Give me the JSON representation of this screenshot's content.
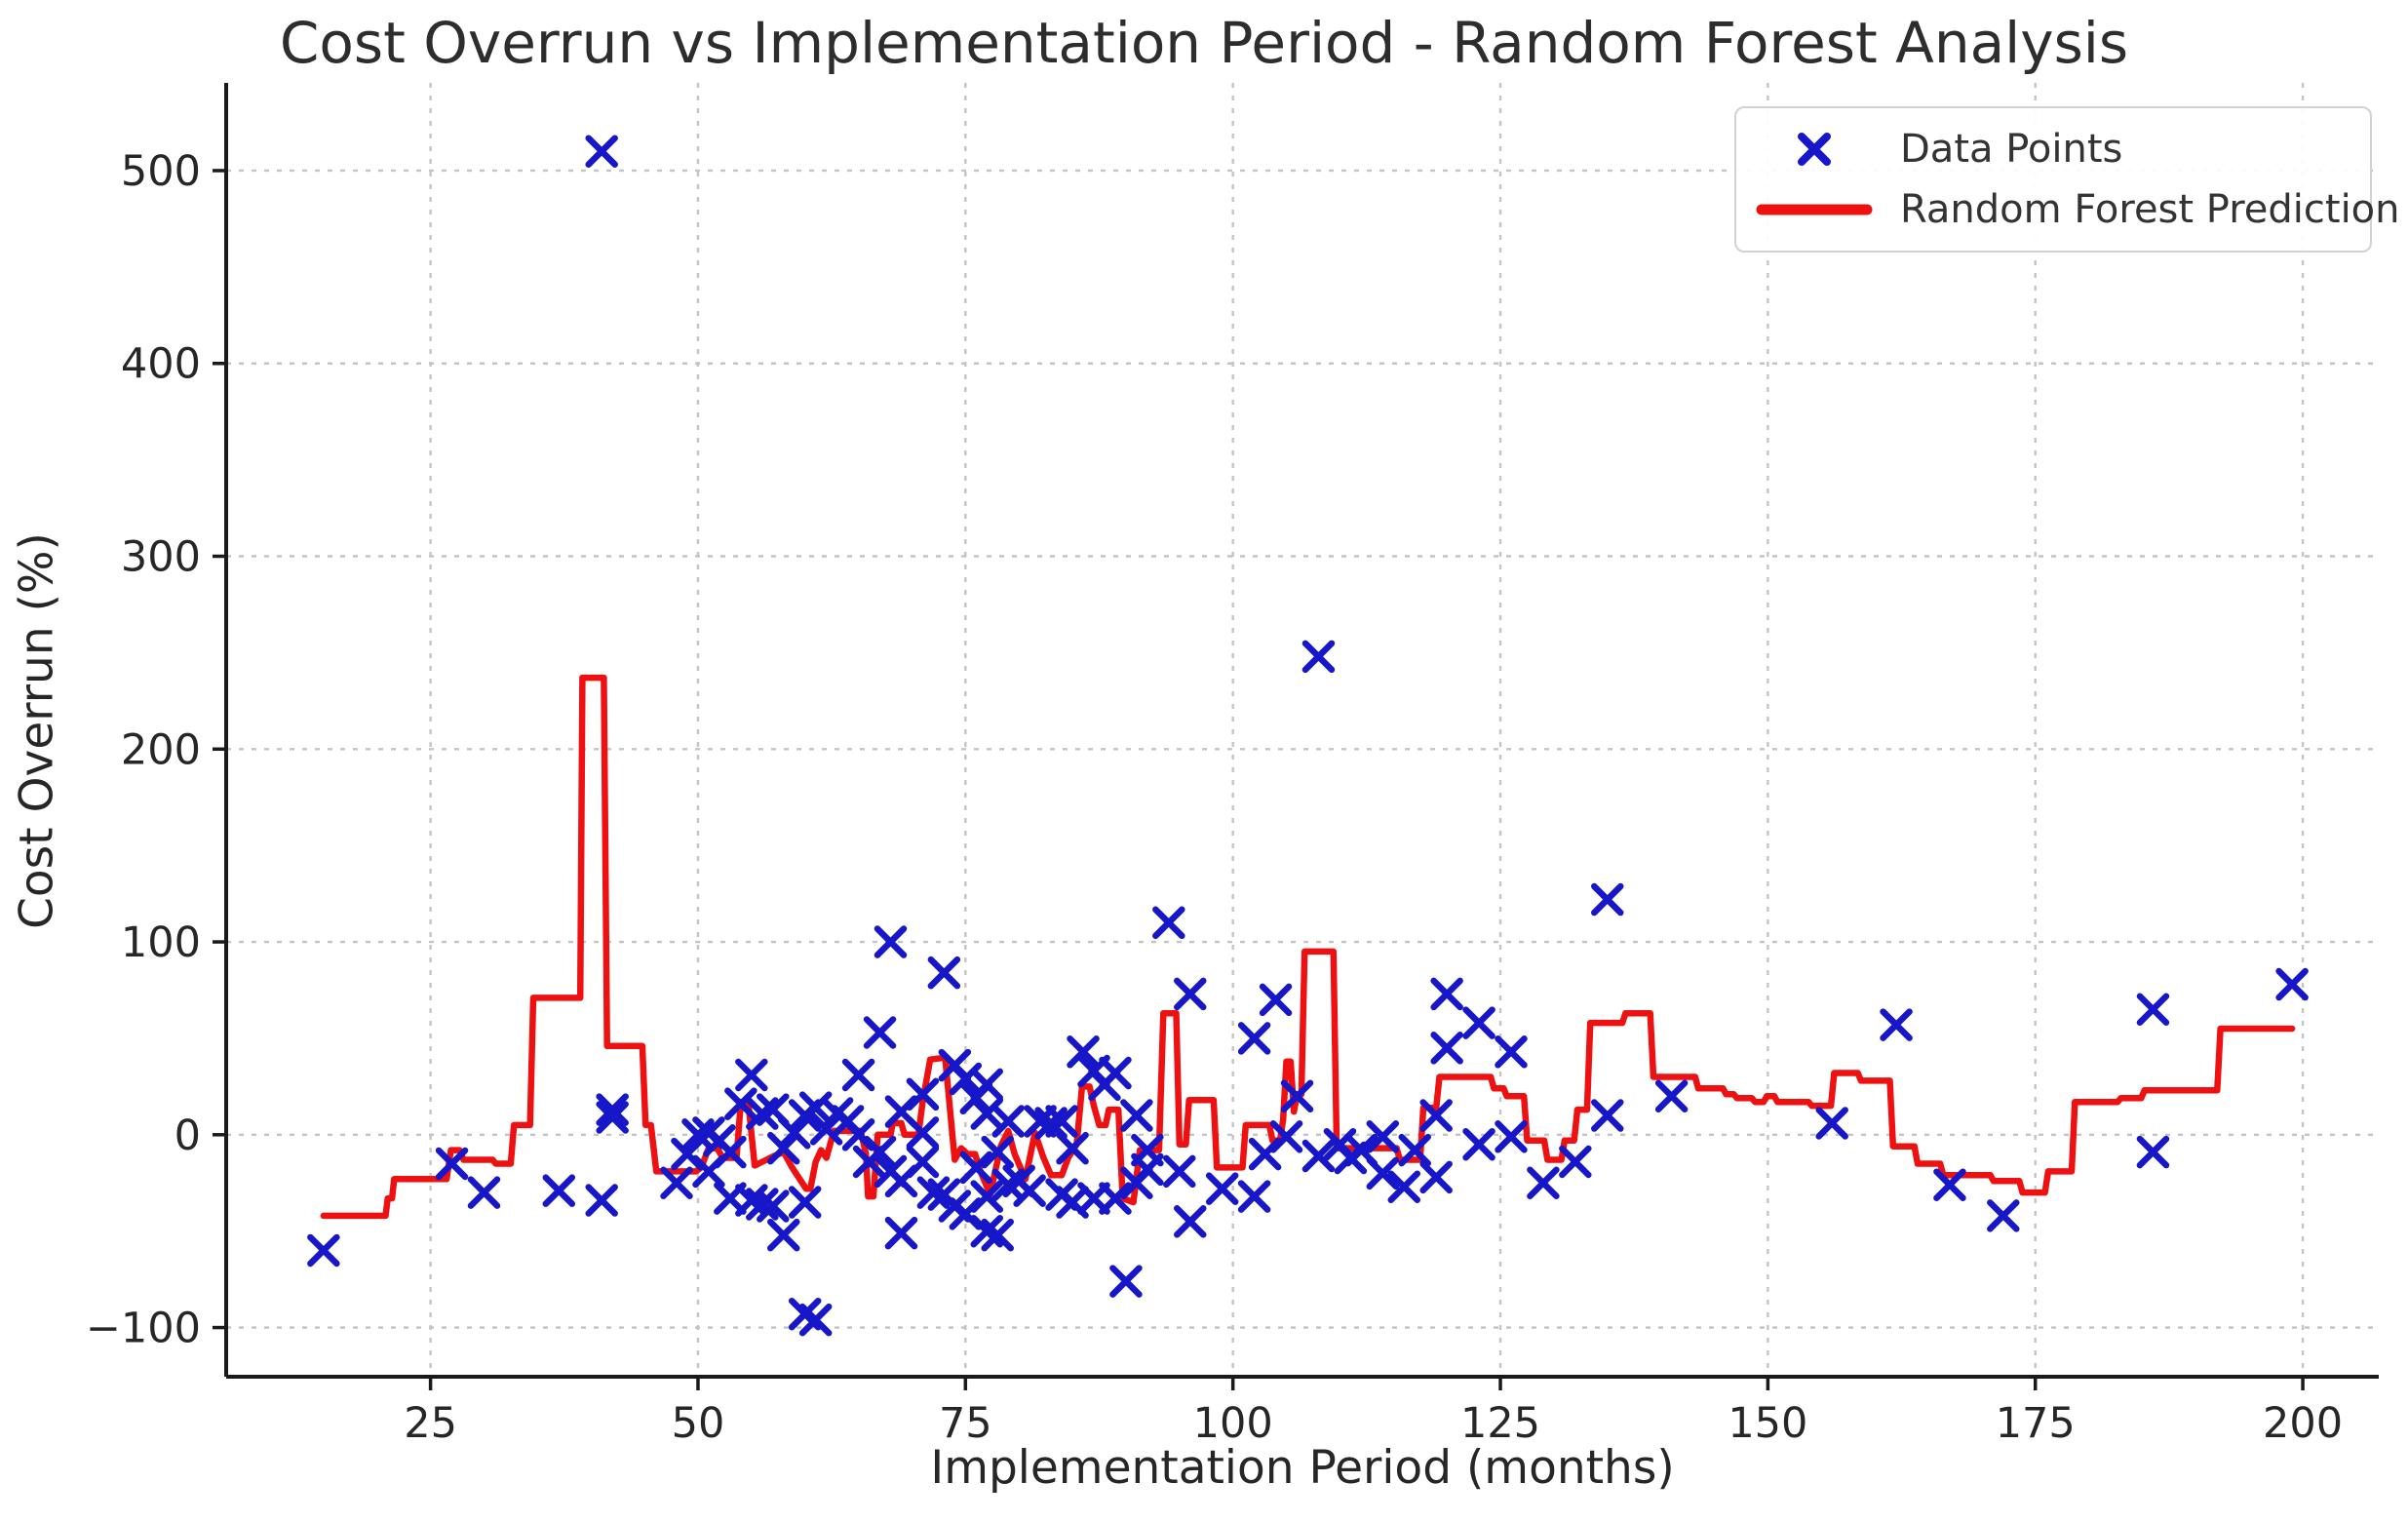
{
  "chart_data": {
    "type": "scatter",
    "title": "Cost Overrun vs Implementation Period - Random Forest Analysis",
    "xlabel": "Implementation Period (months)",
    "ylabel": "Cost Overrun (%)",
    "x_ticks": [
      25,
      50,
      75,
      100,
      125,
      150,
      175,
      200
    ],
    "y_ticks": [
      -100,
      0,
      100,
      200,
      300,
      400,
      500
    ],
    "xlim": [
      5.9,
      207.1
    ],
    "ylim": [
      -125.5,
      545.5
    ],
    "grid": true,
    "legend_position": "upper right",
    "legend": [
      {
        "label": "Data Points",
        "type": "marker"
      },
      {
        "label": "Random Forest Prediction",
        "type": "line"
      }
    ],
    "colors": {
      "marker": "#1717c9",
      "line": "#ee1111",
      "grid": "#c4c4c4",
      "axis": "#1a1a1a",
      "text": "#262626"
    },
    "series": [
      {
        "name": "Data Points",
        "points": [
          [
            15,
            -60
          ],
          [
            27,
            -15
          ],
          [
            30,
            -30
          ],
          [
            37,
            -29
          ],
          [
            41,
            -34
          ],
          [
            41,
            510
          ],
          [
            42,
            9
          ],
          [
            42,
            13
          ],
          [
            48,
            -25
          ],
          [
            49,
            -10
          ],
          [
            50,
            0
          ],
          [
            51,
            1
          ],
          [
            51,
            -19
          ],
          [
            52,
            -3
          ],
          [
            53,
            -9
          ],
          [
            53,
            -33
          ],
          [
            54,
            16
          ],
          [
            55,
            31
          ],
          [
            55,
            -34
          ],
          [
            56,
            11
          ],
          [
            56,
            -36
          ],
          [
            57,
            13
          ],
          [
            57,
            -37
          ],
          [
            58,
            -7
          ],
          [
            58,
            -52
          ],
          [
            59,
            1
          ],
          [
            60,
            10
          ],
          [
            60,
            -35
          ],
          [
            60,
            -93
          ],
          [
            61,
            14
          ],
          [
            61,
            -96
          ],
          [
            62,
            3
          ],
          [
            63,
            11
          ],
          [
            64,
            7
          ],
          [
            65,
            0
          ],
          [
            65,
            31
          ],
          [
            66,
            -14
          ],
          [
            67,
            53
          ],
          [
            67,
            -9
          ],
          [
            68,
            100
          ],
          [
            68,
            -19
          ],
          [
            69,
            12
          ],
          [
            69,
            -24
          ],
          [
            69,
            -51
          ],
          [
            71,
            21
          ],
          [
            71,
            1
          ],
          [
            71,
            -14
          ],
          [
            72,
            -30
          ],
          [
            73,
            84
          ],
          [
            73,
            -31
          ],
          [
            74,
            36
          ],
          [
            74,
            -37
          ],
          [
            75,
            29
          ],
          [
            75,
            -41
          ],
          [
            76,
            19
          ],
          [
            76,
            -17
          ],
          [
            77,
            26
          ],
          [
            77,
            11
          ],
          [
            77,
            -32
          ],
          [
            77,
            -50
          ],
          [
            78,
            -52
          ],
          [
            78,
            -9
          ],
          [
            79,
            7
          ],
          [
            79,
            -26
          ],
          [
            80,
            -24
          ],
          [
            81,
            -29
          ],
          [
            82,
            7
          ],
          [
            83,
            6
          ],
          [
            84,
            7
          ],
          [
            84,
            -31
          ],
          [
            85,
            -7
          ],
          [
            85,
            -35
          ],
          [
            86,
            43
          ],
          [
            87,
            33
          ],
          [
            87,
            -33
          ],
          [
            88,
            26
          ],
          [
            89,
            32
          ],
          [
            89,
            -33
          ],
          [
            90,
            -76
          ],
          [
            91,
            10
          ],
          [
            91,
            -25
          ],
          [
            92,
            -8
          ],
          [
            92,
            -18
          ],
          [
            94,
            110
          ],
          [
            95,
            -19
          ],
          [
            96,
            73
          ],
          [
            96,
            -45
          ],
          [
            99,
            -28
          ],
          [
            102,
            50
          ],
          [
            102,
            -32
          ],
          [
            103,
            -10
          ],
          [
            104,
            70
          ],
          [
            105,
            -1
          ],
          [
            106,
            20
          ],
          [
            108,
            248
          ],
          [
            108,
            -11
          ],
          [
            110,
            -5
          ],
          [
            111,
            -12
          ],
          [
            112,
            -8
          ],
          [
            114,
            -1
          ],
          [
            114,
            -20
          ],
          [
            116,
            -27
          ],
          [
            117,
            -8
          ],
          [
            119,
            10
          ],
          [
            119,
            -22
          ],
          [
            120,
            73
          ],
          [
            120,
            45
          ],
          [
            123,
            58
          ],
          [
            123,
            -5
          ],
          [
            126,
            43
          ],
          [
            126,
            -1
          ],
          [
            129,
            -25
          ],
          [
            132,
            -14
          ],
          [
            135,
            122
          ],
          [
            135,
            10
          ],
          [
            141,
            20
          ],
          [
            156,
            6
          ],
          [
            162,
            57
          ],
          [
            167,
            -26
          ],
          [
            172,
            -42
          ],
          [
            186,
            65
          ],
          [
            186,
            -9
          ],
          [
            199,
            78
          ]
        ]
      },
      {
        "name": "Random Forest Prediction",
        "points": [
          [
            15,
            -42
          ],
          [
            20.8,
            -42
          ],
          [
            21.0,
            -33
          ],
          [
            21.4,
            -33
          ],
          [
            21.6,
            -23
          ],
          [
            26.5,
            -23
          ],
          [
            26.9,
            -8
          ],
          [
            27.7,
            -8
          ],
          [
            28.1,
            -13
          ],
          [
            30.8,
            -13
          ],
          [
            31.1,
            -15
          ],
          [
            32.5,
            -15
          ],
          [
            32.8,
            5
          ],
          [
            34.3,
            5
          ],
          [
            34.6,
            71
          ],
          [
            39.0,
            71
          ],
          [
            39.2,
            237
          ],
          [
            41.2,
            237
          ],
          [
            41.5,
            46
          ],
          [
            44.8,
            46
          ],
          [
            45.1,
            5
          ],
          [
            45.6,
            5
          ],
          [
            46.1,
            -19
          ],
          [
            49.8,
            -19
          ],
          [
            50.3,
            -17
          ],
          [
            51.0,
            -7
          ],
          [
            51.8,
            -7
          ],
          [
            52.3,
            -12
          ],
          [
            53.6,
            -12
          ],
          [
            54.0,
            17
          ],
          [
            54.7,
            17
          ],
          [
            55.3,
            -16
          ],
          [
            56.4,
            -13
          ],
          [
            57.1,
            -11
          ],
          [
            58.0,
            -9
          ],
          [
            58.8,
            -17
          ],
          [
            60.1,
            -28
          ],
          [
            60.5,
            -28
          ],
          [
            61.0,
            -14
          ],
          [
            61.5,
            -8
          ],
          [
            62.0,
            -12
          ],
          [
            62.7,
            2
          ],
          [
            65.2,
            2
          ],
          [
            65.7,
            -10
          ],
          [
            65.9,
            -32
          ],
          [
            66.4,
            -32
          ],
          [
            66.8,
            0
          ],
          [
            68.0,
            0
          ],
          [
            68.2,
            6
          ],
          [
            69.0,
            6
          ],
          [
            69.3,
            0
          ],
          [
            70.6,
            0
          ],
          [
            71.0,
            17
          ],
          [
            71.7,
            39
          ],
          [
            73.1,
            40
          ],
          [
            74.0,
            -13
          ],
          [
            74.6,
            -7
          ],
          [
            75.2,
            -10
          ],
          [
            75.9,
            -10
          ],
          [
            76.4,
            -19
          ],
          [
            77.3,
            -31
          ],
          [
            78.3,
            -6
          ],
          [
            79.0,
            2
          ],
          [
            79.6,
            -10
          ],
          [
            80.6,
            -23
          ],
          [
            81.5,
            1
          ],
          [
            82.3,
            -12
          ],
          [
            83.0,
            -21
          ],
          [
            84.0,
            -21
          ],
          [
            84.6,
            -12
          ],
          [
            85.4,
            -5
          ],
          [
            85.9,
            25
          ],
          [
            86.6,
            25
          ],
          [
            87.0,
            15
          ],
          [
            87.5,
            5
          ],
          [
            88.1,
            5
          ],
          [
            88.4,
            13
          ],
          [
            89.3,
            13
          ],
          [
            89.7,
            -33
          ],
          [
            90.7,
            -35
          ],
          [
            91.3,
            -8
          ],
          [
            93.1,
            -8
          ],
          [
            93.5,
            63
          ],
          [
            94.7,
            63
          ],
          [
            95.0,
            -5
          ],
          [
            95.6,
            -5
          ],
          [
            95.9,
            18
          ],
          [
            98.2,
            18
          ],
          [
            98.5,
            -17
          ],
          [
            100.9,
            -17
          ],
          [
            101.2,
            5
          ],
          [
            103.4,
            5
          ],
          [
            103.7,
            -3
          ],
          [
            104.4,
            -3
          ],
          [
            104.7,
            8
          ],
          [
            105.0,
            38
          ],
          [
            105.4,
            38
          ],
          [
            105.7,
            12
          ],
          [
            106.0,
            21
          ],
          [
            106.4,
            21
          ],
          [
            106.7,
            95
          ],
          [
            109.4,
            95
          ],
          [
            109.7,
            -7
          ],
          [
            115.3,
            -7
          ],
          [
            115.6,
            -13
          ],
          [
            117.5,
            -13
          ],
          [
            117.8,
            14
          ],
          [
            119.0,
            14
          ],
          [
            119.3,
            30
          ],
          [
            124.1,
            30
          ],
          [
            124.4,
            24
          ],
          [
            125.3,
            24
          ],
          [
            125.6,
            20
          ],
          [
            127.2,
            20
          ],
          [
            127.5,
            -3
          ],
          [
            129.1,
            -3
          ],
          [
            129.4,
            -13
          ],
          [
            130.7,
            -13
          ],
          [
            131.0,
            -3
          ],
          [
            131.9,
            -3
          ],
          [
            132.2,
            13
          ],
          [
            133.1,
            13
          ],
          [
            133.4,
            58
          ],
          [
            136.4,
            58
          ],
          [
            136.7,
            63
          ],
          [
            139.0,
            63
          ],
          [
            139.3,
            30
          ],
          [
            143.2,
            30
          ],
          [
            143.5,
            24
          ],
          [
            145.8,
            24
          ],
          [
            146.1,
            21
          ],
          [
            146.8,
            21
          ],
          [
            147.1,
            19
          ],
          [
            148.5,
            19
          ],
          [
            148.8,
            17
          ],
          [
            149.6,
            17
          ],
          [
            149.9,
            20
          ],
          [
            150.6,
            20
          ],
          [
            150.9,
            17
          ],
          [
            153.8,
            17
          ],
          [
            154.1,
            15
          ],
          [
            155.9,
            15
          ],
          [
            156.2,
            32
          ],
          [
            158.4,
            32
          ],
          [
            158.7,
            28
          ],
          [
            161.4,
            28
          ],
          [
            161.7,
            -6
          ],
          [
            163.7,
            -6
          ],
          [
            164.0,
            -15
          ],
          [
            166.1,
            -15
          ],
          [
            166.4,
            -21
          ],
          [
            170.8,
            -21
          ],
          [
            171.1,
            -24
          ],
          [
            173.5,
            -24
          ],
          [
            173.8,
            -30
          ],
          [
            175.9,
            -30
          ],
          [
            176.2,
            -19
          ],
          [
            178.4,
            -19
          ],
          [
            178.7,
            17
          ],
          [
            182.7,
            17
          ],
          [
            183.0,
            19
          ],
          [
            184.9,
            19
          ],
          [
            185.2,
            23
          ],
          [
            192.0,
            23
          ],
          [
            192.3,
            55
          ],
          [
            199.0,
            55
          ]
        ]
      }
    ]
  }
}
